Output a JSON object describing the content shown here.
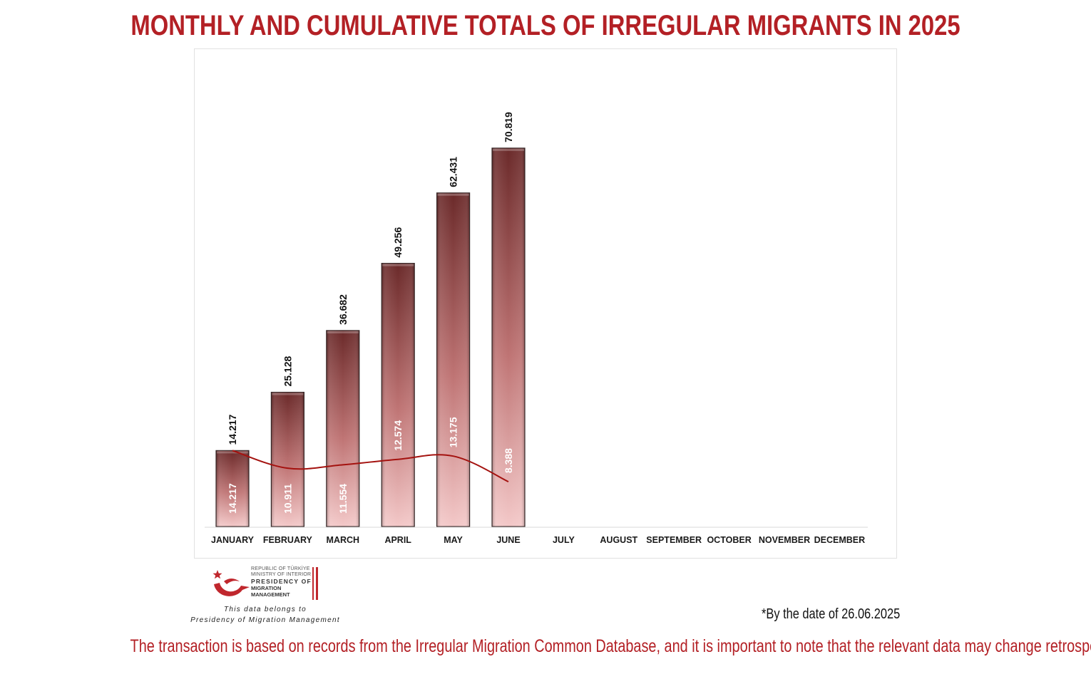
{
  "title": "MONTHLY AND CUMULATIVE TOTALS OF IRREGULAR MIGRANTS IN 2025",
  "logo": {
    "line1": "REPUBLIC OF TÜRKİYE",
    "line2": "MINISTRY OF INTERIOR",
    "line3": "PRESIDENCY OF",
    "line4": "MIGRATION MANAGEMENT",
    "icon": "crescent-star-bird-icon",
    "brand_color": "#c0272d"
  },
  "belongs_line1": "This data belongs to",
  "belongs_line2": "Presidency of Migration Management",
  "date_note": "*By the date of 26.06.2025",
  "footer": "The transaction is based on records from the Irregular Migration Common Database, and it is important to note that the relevant data may change retrospectively.",
  "colors": {
    "accent": "#b32025",
    "bar_top": "#6b2a2a",
    "bar_bottom": "#f3c8c8",
    "line": "#a4120f"
  },
  "chart_data": {
    "type": "bar",
    "title": "MONTHLY AND CUMULATIVE TOTALS OF IRREGULAR MIGRANTS IN 2025",
    "xlabel": "",
    "ylabel": "",
    "ylim": [
      0,
      80000
    ],
    "grid": false,
    "categories": [
      "JANUARY",
      "FEBRUARY",
      "MARCH",
      "APRIL",
      "MAY",
      "JUNE",
      "JULY",
      "AUGUST",
      "SEPTEMBER",
      "OCTOBER",
      "NOVEMBER",
      "DECEMBER"
    ],
    "series": [
      {
        "type": "bar",
        "values": [
          14217,
          25128,
          36682,
          49256,
          62431,
          70819,
          null,
          null,
          null,
          null,
          null,
          null
        ],
        "labels": [
          "14.217",
          "25.128",
          "36.682",
          "49.256",
          "62.431",
          "70.819",
          "",
          "",
          "",
          "",
          "",
          ""
        ]
      },
      {
        "type": "line",
        "values": [
          14217,
          10911,
          11554,
          12574,
          13175,
          8388,
          null,
          null,
          null,
          null,
          null,
          null
        ],
        "labels": [
          "14.217",
          "10.911",
          "11.554",
          "12.574",
          "13.175",
          "8.388",
          "",
          "",
          "",
          "",
          "",
          ""
        ]
      }
    ]
  }
}
